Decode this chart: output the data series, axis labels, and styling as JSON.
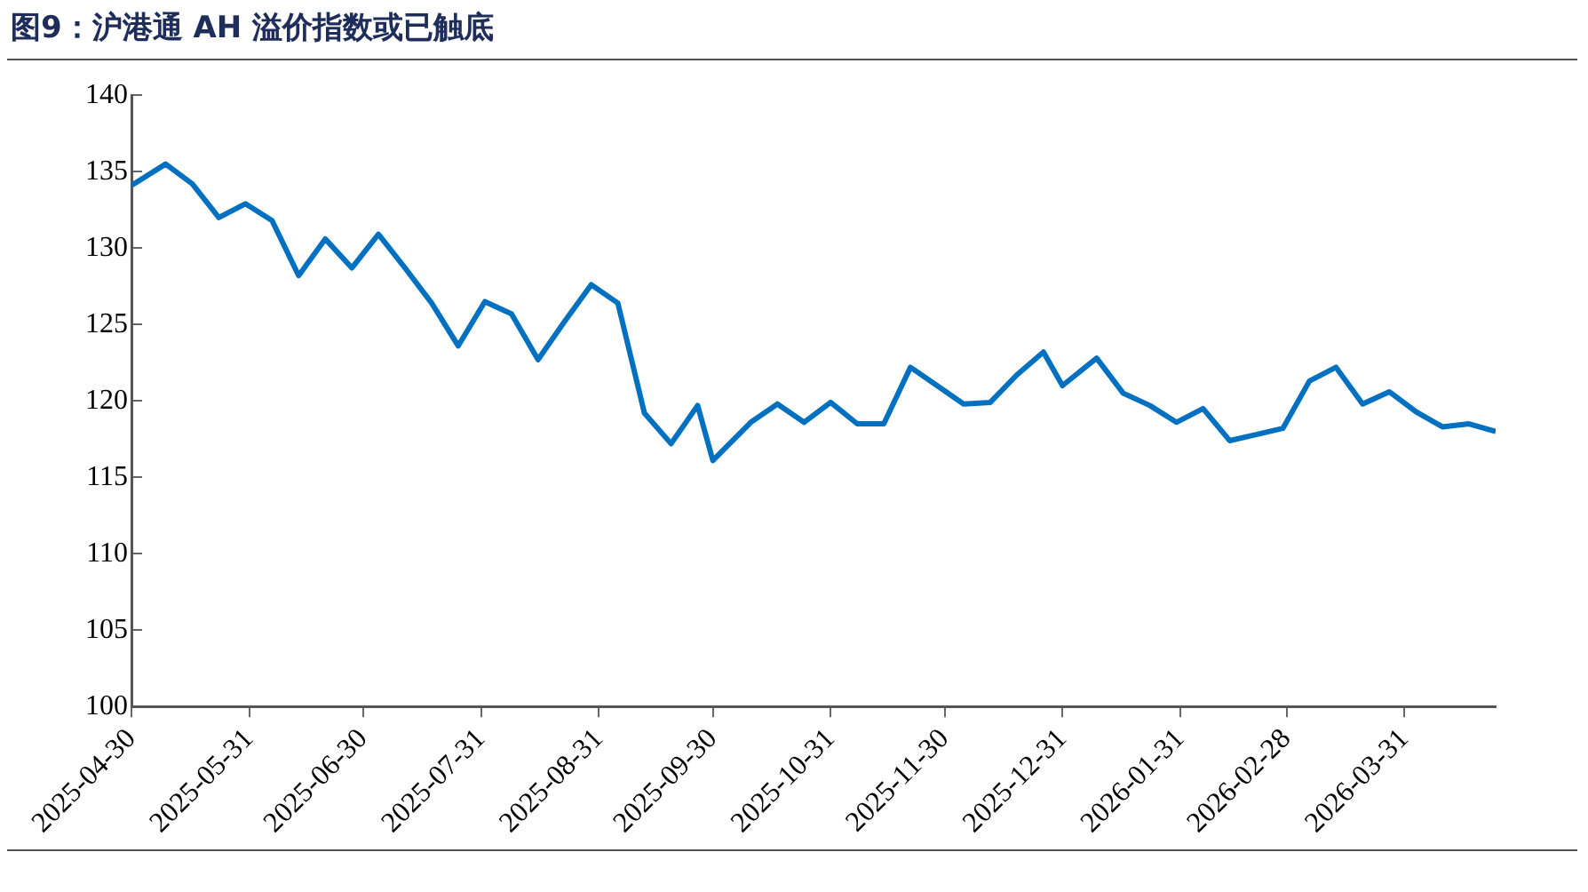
{
  "chart_data": {
    "type": "line",
    "title": "图9：沪港通 AH 溢价指数或已触底",
    "x": [
      "2025-04-30",
      "2025-05-09",
      "2025-05-16",
      "2025-05-23",
      "2025-05-30",
      "2025-06-06",
      "2025-06-13",
      "2025-06-20",
      "2025-06-27",
      "2025-07-04",
      "2025-07-11",
      "2025-07-18",
      "2025-07-25",
      "2025-08-01",
      "2025-08-08",
      "2025-08-15",
      "2025-08-22",
      "2025-08-29",
      "2025-09-05",
      "2025-09-12",
      "2025-09-19",
      "2025-09-26",
      "2025-09-30",
      "2025-10-10",
      "2025-10-17",
      "2025-10-24",
      "2025-10-31",
      "2025-11-07",
      "2025-11-14",
      "2025-11-21",
      "2025-11-28",
      "2025-12-05",
      "2025-12-12",
      "2025-12-19",
      "2025-12-26",
      "2025-12-31",
      "2026-01-09",
      "2026-01-16",
      "2026-01-23",
      "2026-01-30",
      "2026-02-06",
      "2026-02-13",
      "2026-02-20",
      "2026-02-27",
      "2026-03-06",
      "2026-03-13",
      "2026-03-20",
      "2026-03-27",
      "2026-04-03",
      "2026-04-10",
      "2026-04-17",
      "2026-04-24"
    ],
    "series": [
      {
        "color": "#0070c0",
        "values": [
          134.1,
          135.5,
          134.2,
          132.0,
          132.9,
          131.8,
          128.2,
          130.6,
          128.7,
          130.9,
          128.7,
          126.4,
          123.6,
          126.5,
          125.7,
          122.7,
          125.2,
          127.6,
          126.4,
          119.2,
          117.2,
          119.7,
          116.1,
          118.6,
          119.8,
          118.6,
          119.9,
          118.5,
          118.5,
          122.2,
          121.0,
          119.8,
          119.9,
          121.7,
          123.2,
          121.0,
          122.8,
          120.5,
          119.7,
          118.6,
          119.5,
          117.4,
          117.8,
          118.2,
          121.3,
          122.2,
          119.8,
          120.6,
          119.3,
          118.3,
          118.5,
          118.0
        ]
      }
    ],
    "xlim": [
      "2025-04-30",
      "2026-04-24"
    ],
    "xticks": [
      "2025-04-30",
      "2025-05-31",
      "2025-06-30",
      "2025-07-31",
      "2025-08-31",
      "2025-09-30",
      "2025-10-31",
      "2025-11-30",
      "2025-12-31",
      "2026-01-31",
      "2026-02-28",
      "2026-03-31"
    ],
    "ylim": [
      100,
      140
    ],
    "yticks": [
      100,
      105,
      110,
      115,
      120,
      125,
      130,
      135,
      140
    ],
    "grid": false,
    "legend": false,
    "marker": "none",
    "line_style": "solid"
  }
}
